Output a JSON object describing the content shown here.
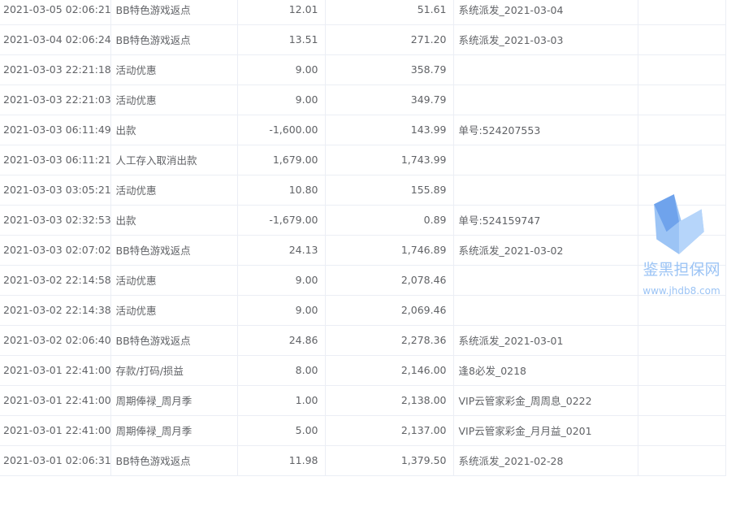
{
  "rows": [
    {
      "time": "2021-03-05 02:06:21",
      "type": "BB特色游戏返点",
      "amount": "12.01",
      "balance": "51.61",
      "remark": "系统派发_2021-03-04",
      "extra": ""
    },
    {
      "time": "2021-03-04 02:06:24",
      "type": "BB特色游戏返点",
      "amount": "13.51",
      "balance": "271.20",
      "remark": "系统派发_2021-03-03",
      "extra": ""
    },
    {
      "time": "2021-03-03 22:21:18",
      "type": "活动优惠",
      "amount": "9.00",
      "balance": "358.79",
      "remark": "",
      "extra": ""
    },
    {
      "time": "2021-03-03 22:21:03",
      "type": "活动优惠",
      "amount": "9.00",
      "balance": "349.79",
      "remark": "",
      "extra": ""
    },
    {
      "time": "2021-03-03 06:11:49",
      "type": "出款",
      "amount": "-1,600.00",
      "balance": "143.99",
      "remark": "单号:524207553",
      "extra": ""
    },
    {
      "time": "2021-03-03 06:11:21",
      "type": "人工存入取消出款",
      "amount": "1,679.00",
      "balance": "1,743.99",
      "remark": "",
      "extra": ""
    },
    {
      "time": "2021-03-03 03:05:21",
      "type": "活动优惠",
      "amount": "10.80",
      "balance": "155.89",
      "remark": "",
      "extra": ""
    },
    {
      "time": "2021-03-03 02:32:53",
      "type": "出款",
      "amount": "-1,679.00",
      "balance": "0.89",
      "remark": "单号:524159747",
      "extra": ""
    },
    {
      "time": "2021-03-03 02:07:02",
      "type": "BB特色游戏返点",
      "amount": "24.13",
      "balance": "1,746.89",
      "remark": "系统派发_2021-03-02",
      "extra": ""
    },
    {
      "time": "2021-03-02 22:14:58",
      "type": "活动优惠",
      "amount": "9.00",
      "balance": "2,078.46",
      "remark": "",
      "extra": ""
    },
    {
      "time": "2021-03-02 22:14:38",
      "type": "活动优惠",
      "amount": "9.00",
      "balance": "2,069.46",
      "remark": "",
      "extra": ""
    },
    {
      "time": "2021-03-02 02:06:40",
      "type": "BB特色游戏返点",
      "amount": "24.86",
      "balance": "2,278.36",
      "remark": "系统派发_2021-03-01",
      "extra": ""
    },
    {
      "time": "2021-03-01 22:41:00",
      "type": "存款/打码/损益",
      "amount": "8.00",
      "balance": "2,146.00",
      "remark": "逢8必发_0218",
      "extra": ""
    },
    {
      "time": "2021-03-01 22:41:00",
      "type": "周期俸禄_周月季",
      "amount": "1.00",
      "balance": "2,138.00",
      "remark": "VIP云管家彩金_周周息_0222",
      "extra": ""
    },
    {
      "time": "2021-03-01 22:41:00",
      "type": "周期俸禄_周月季",
      "amount": "5.00",
      "balance": "2,137.00",
      "remark": "VIP云管家彩金_月月益_0201",
      "extra": ""
    },
    {
      "time": "2021-03-01 02:06:31",
      "type": "BB特色游戏返点",
      "amount": "11.98",
      "balance": "1,379.50",
      "remark": "系统派发_2021-02-28",
      "extra": ""
    }
  ],
  "watermark": {
    "title": "鉴黑担保网",
    "url": "www.jhdb8.com",
    "color": "#7fb2f0"
  }
}
